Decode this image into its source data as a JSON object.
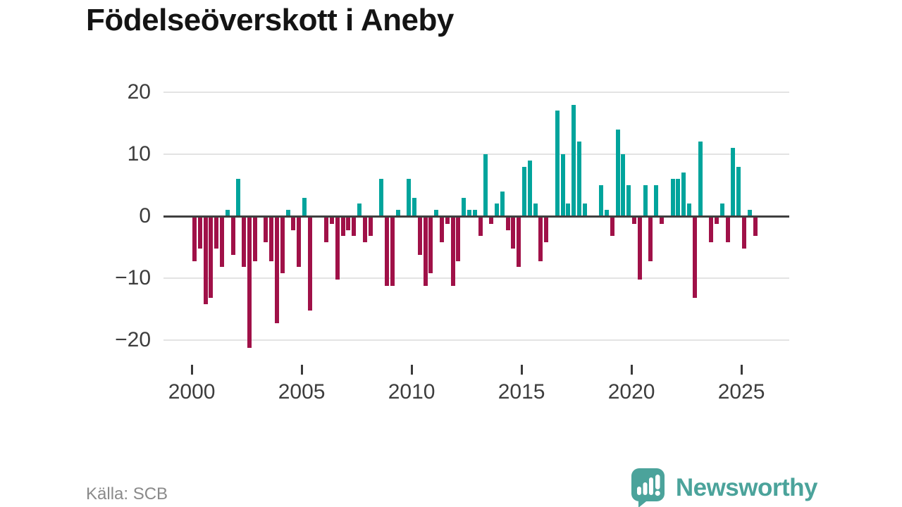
{
  "title": "Födelseöverskott i Aneby",
  "source": "Källa: SCB",
  "logo": {
    "text": "Newsworthy"
  },
  "chart_data": {
    "type": "bar",
    "title": "Födelseöverskott i Aneby",
    "xlabel": "",
    "ylabel": "",
    "period": "quarterly",
    "x_start": "2000Q1",
    "x_end": "2025Q3",
    "categories": [
      "2000Q1",
      "2000Q2",
      "2000Q3",
      "2000Q4",
      "2001Q1",
      "2001Q2",
      "2001Q3",
      "2001Q4",
      "2002Q1",
      "2002Q2",
      "2002Q3",
      "2002Q4",
      "2003Q1",
      "2003Q2",
      "2003Q3",
      "2003Q4",
      "2004Q1",
      "2004Q2",
      "2004Q3",
      "2004Q4",
      "2005Q1",
      "2005Q2",
      "2005Q3",
      "2005Q4",
      "2006Q1",
      "2006Q2",
      "2006Q3",
      "2006Q4",
      "2007Q1",
      "2007Q2",
      "2007Q3",
      "2007Q4",
      "2008Q1",
      "2008Q2",
      "2008Q3",
      "2008Q4",
      "2009Q1",
      "2009Q2",
      "2009Q3",
      "2009Q4",
      "2010Q1",
      "2010Q2",
      "2010Q3",
      "2010Q4",
      "2011Q1",
      "2011Q2",
      "2011Q3",
      "2011Q4",
      "2012Q1",
      "2012Q2",
      "2012Q3",
      "2012Q4",
      "2013Q1",
      "2013Q2",
      "2013Q3",
      "2013Q4",
      "2014Q1",
      "2014Q2",
      "2014Q3",
      "2014Q4",
      "2015Q1",
      "2015Q2",
      "2015Q3",
      "2015Q4",
      "2016Q1",
      "2016Q2",
      "2016Q3",
      "2016Q4",
      "2017Q1",
      "2017Q2",
      "2017Q3",
      "2017Q4",
      "2018Q1",
      "2018Q2",
      "2018Q3",
      "2018Q4",
      "2019Q1",
      "2019Q2",
      "2019Q3",
      "2019Q4",
      "2020Q1",
      "2020Q2",
      "2020Q3",
      "2020Q4",
      "2021Q1",
      "2021Q2",
      "2021Q3",
      "2021Q4",
      "2022Q1",
      "2022Q2",
      "2022Q3",
      "2022Q4",
      "2023Q1",
      "2023Q2",
      "2023Q3",
      "2023Q4",
      "2024Q1",
      "2024Q2",
      "2024Q3",
      "2024Q4",
      "2025Q1",
      "2025Q2",
      "2025Q3"
    ],
    "values": [
      -7,
      -5,
      -14,
      -13,
      -5,
      -8,
      1,
      -6,
      6,
      -8,
      -21,
      -7,
      0,
      -4,
      -7,
      -17,
      -9,
      1,
      -2,
      -8,
      3,
      -15,
      0,
      0,
      -4,
      -1,
      -10,
      -3,
      -2,
      -3,
      2,
      -4,
      -3,
      0,
      6,
      -11,
      -11,
      1,
      0,
      6,
      3,
      -6,
      -11,
      -9,
      1,
      -4,
      -1,
      -11,
      -7,
      3,
      1,
      1,
      -3,
      10,
      -1,
      2,
      4,
      -2,
      -5,
      -8,
      8,
      9,
      2,
      -7,
      -4,
      0,
      17,
      10,
      2,
      18,
      12,
      2,
      0,
      0,
      5,
      1,
      -3,
      14,
      10,
      5,
      -1,
      -10,
      5,
      -7,
      5,
      -1,
      0,
      6,
      6,
      7,
      2,
      -13,
      12,
      0,
      -4,
      -1,
      2,
      -4,
      11,
      8,
      -5,
      1,
      -3
    ],
    "y_ticks": [
      20,
      10,
      0,
      -10,
      -20
    ],
    "y_tick_labels": [
      "20",
      "10",
      "0",
      "−10",
      "−20"
    ],
    "x_ticks": [
      2000,
      2005,
      2010,
      2015,
      2020,
      2025
    ],
    "ylim": [
      -22.5,
      21
    ],
    "grid": "horizontal",
    "legend": "none",
    "colors": {
      "positive": "#00a49c",
      "negative": "#a01148"
    }
  }
}
